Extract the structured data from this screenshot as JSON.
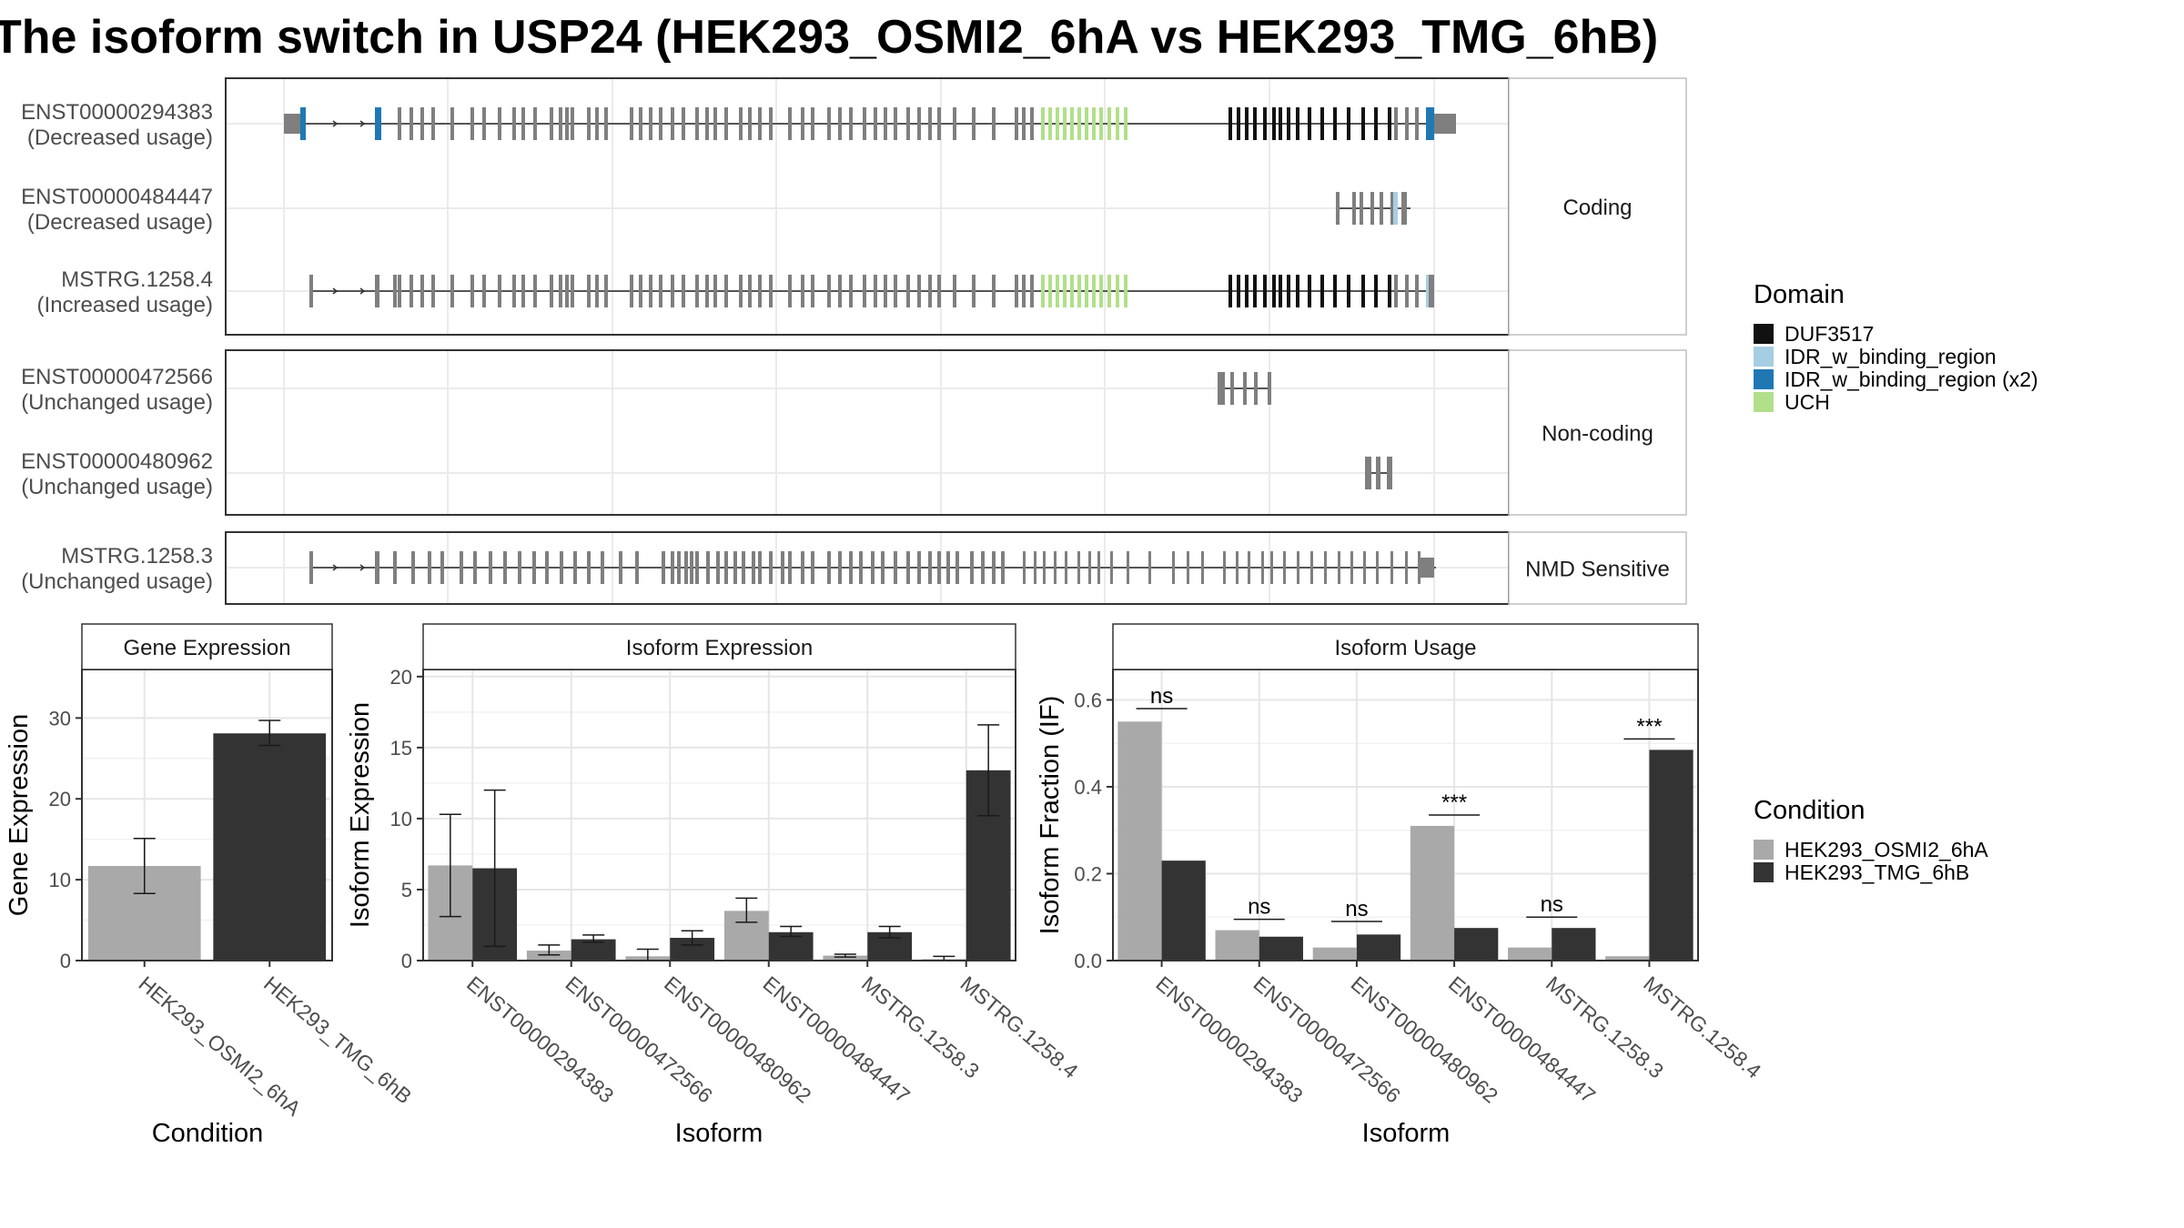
{
  "title": "The isoform switch in USP24 (HEK293_OSMI2_6hA vs HEK293_TMG_6hB)",
  "colors": {
    "DUF3517": "#111111",
    "IDR_w_binding_region": "#a6cee3",
    "IDR_w_binding_region (x2)": "#1f78b4",
    "UCH": "#b2df8a",
    "exon": "#7f7f7f",
    "cond_A": "#a9a9a9",
    "cond_B": "#333333"
  },
  "legend_domain": {
    "title": "Domain",
    "items": [
      {
        "label": "DUF3517",
        "color": "#111111"
      },
      {
        "label": "IDR_w_binding_region",
        "color": "#a6cee3"
      },
      {
        "label": "IDR_w_binding_region (x2)",
        "color": "#1f78b4"
      },
      {
        "label": "UCH",
        "color": "#b2df8a"
      }
    ]
  },
  "legend_condition": {
    "title": "Condition",
    "items": [
      {
        "label": "HEK293_OSMI2_6hA",
        "color": "#a9a9a9"
      },
      {
        "label": "HEK293_TMG_6hB",
        "color": "#333333"
      }
    ]
  },
  "isoform_panels": [
    {
      "strip": "Coding",
      "rows": [
        {
          "id": "ENST00000294383",
          "usage": "(Decreased usage)"
        },
        {
          "id": "ENST00000484447",
          "usage": "(Decreased usage)"
        },
        {
          "id": "MSTRG.1258.4",
          "usage": "(Increased usage)"
        }
      ]
    },
    {
      "strip": "Non-coding",
      "rows": [
        {
          "id": "ENST00000472566",
          "usage": "(Unchanged usage)"
        },
        {
          "id": "ENST00000480962",
          "usage": "(Unchanged usage)"
        }
      ]
    },
    {
      "strip": "NMD Sensitive",
      "rows": [
        {
          "id": "MSTRG.1258.3",
          "usage": "(Unchanged usage)"
        }
      ]
    }
  ],
  "chart_data": [
    {
      "type": "bar",
      "title": "Gene Expression",
      "xlabel": "Condition",
      "ylabel": "Gene Expression",
      "ylim": [
        0,
        36
      ],
      "yticks": [
        0,
        10,
        20,
        30
      ],
      "categories": [
        "HEK293_OSMI2_6hA",
        "HEK293_TMG_6hB"
      ],
      "series": [
        {
          "name": "HEK293_OSMI2_6hA",
          "values": [
            11.7,
            null
          ],
          "err_low": [
            8.3,
            null
          ],
          "err_high": [
            15.1,
            null
          ]
        },
        {
          "name": "HEK293_TMG_6hB",
          "values": [
            null,
            28.1
          ],
          "err_low": [
            null,
            26.6
          ],
          "err_high": [
            null,
            29.7
          ]
        }
      ]
    },
    {
      "type": "bar",
      "title": "Isoform Expression",
      "xlabel": "Isoform",
      "ylabel": "Isoform Expression",
      "ylim": [
        0,
        20.5
      ],
      "yticks": [
        0,
        5,
        10,
        15,
        20
      ],
      "categories": [
        "ENST00000294383",
        "ENST00000472566",
        "ENST00000480962",
        "ENST00000484447",
        "MSTRG.1258.3",
        "MSTRG.1258.4"
      ],
      "series": [
        {
          "name": "HEK293_OSMI2_6hA",
          "values": [
            6.7,
            0.7,
            0.3,
            3.5,
            0.35,
            0.1
          ],
          "err_low": [
            3.1,
            0.4,
            0.0,
            2.7,
            0.25,
            0.0
          ],
          "err_high": [
            10.3,
            1.1,
            0.8,
            4.4,
            0.45,
            0.3
          ]
        },
        {
          "name": "HEK293_TMG_6hB",
          "values": [
            6.5,
            1.5,
            1.6,
            2.0,
            2.0,
            13.4
          ],
          "err_low": [
            1.0,
            1.3,
            1.1,
            1.7,
            1.6,
            10.2
          ],
          "err_high": [
            12.0,
            1.8,
            2.1,
            2.4,
            2.4,
            16.6
          ]
        }
      ]
    },
    {
      "type": "bar",
      "title": "Isoform Usage",
      "xlabel": "Isoform",
      "ylabel": "Isoform Fraction (IF)",
      "ylim": [
        0,
        0.67
      ],
      "yticks": [
        0.0,
        0.2,
        0.4,
        0.6
      ],
      "categories": [
        "ENST00000294383",
        "ENST00000472566",
        "ENST00000480962",
        "ENST00000484447",
        "MSTRG.1258.3",
        "MSTRG.1258.4"
      ],
      "series": [
        {
          "name": "HEK293_OSMI2_6hA",
          "values": [
            0.55,
            0.07,
            0.03,
            0.31,
            0.03,
            0.01
          ]
        },
        {
          "name": "HEK293_TMG_6hB",
          "values": [
            0.23,
            0.055,
            0.06,
            0.075,
            0.075,
            0.485
          ]
        }
      ],
      "significance": [
        "ns",
        "ns",
        "ns",
        "***",
        "ns",
        "***"
      ],
      "sig_y": [
        0.58,
        0.095,
        0.09,
        0.335,
        0.1,
        0.51
      ]
    }
  ]
}
